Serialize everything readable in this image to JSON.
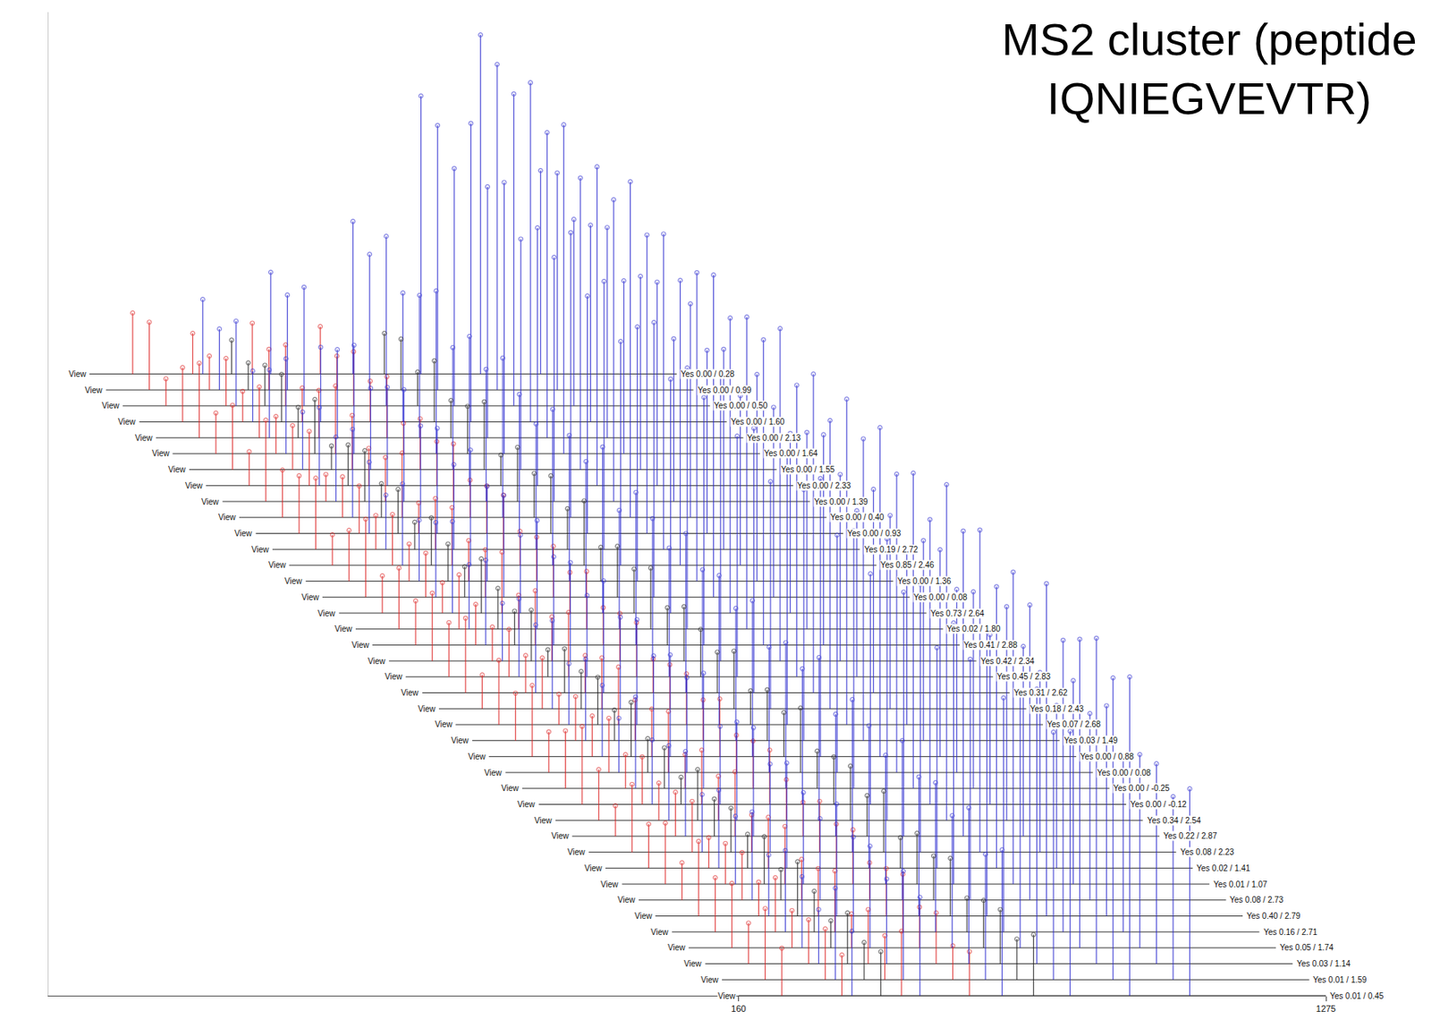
{
  "chart_data": {
    "type": "stacked_spectra",
    "title": "MS2 cluster (peptide IQNIEGVEVTR)",
    "x": [
      242.15,
      356.19,
      375.24,
      430.0,
      469.28,
      504.28,
      598.32,
      660.37,
      720.0,
      789.41,
      902.5,
      1016.54
    ],
    "colors": [
      "#dd2020",
      "#dd2020",
      "#2a2ad0",
      "#202020",
      "#dd2020",
      "#2a2ad0",
      "#dd2020",
      "#2a2ad0",
      "#202020",
      "#2a2ad0",
      "#2a2ad0",
      "#2a2ad0"
    ],
    "marker": "circle-open",
    "xlim": [
      -1150,
      1275
    ],
    "xticks": [
      160,
      1275
    ],
    "ylim": [
      0,
      290
    ],
    "tick_labels": "x",
    "grid": false,
    "rows": [
      {
        "link": "View",
        "label": "Yes 0.00 / 0.28",
        "values": [
          18,
          12,
          22,
          10,
          15,
          30,
          14,
          45,
          12,
          82,
          100,
          60
        ]
      },
      {
        "link": "View",
        "label": "Yes 0.00 / 0.99",
        "values": [
          20,
          10,
          18,
          8,
          12,
          28,
          10,
          40,
          15,
          78,
          96,
          64
        ]
      },
      {
        "link": "View",
        "label": "Yes 0.00 / 0.50",
        "values": [
          8,
          14,
          25,
          12,
          18,
          35,
          16,
          50,
          10,
          70,
          92,
          55
        ]
      },
      {
        "link": "View",
        "label": "Yes 0.00 / 1.60",
        "values": [
          16,
          9,
          15,
          14,
          10,
          22,
          12,
          38,
          18,
          88,
          100,
          58
        ]
      },
      {
        "link": "View",
        "label": "Yes 0.00 / 2.13",
        "values": [
          22,
          15,
          20,
          9,
          14,
          26,
          18,
          42,
          11,
          74,
          90,
          62
        ]
      },
      {
        "link": "View",
        "label": "Yes 0.00 / 1.64",
        "values": [
          12,
          11,
          28,
          16,
          20,
          32,
          9,
          48,
          14,
          80,
          97,
          51
        ]
      },
      {
        "link": "View",
        "label": "Yes 0.00 / 1.55",
        "values": [
          19,
          13,
          17,
          7,
          16,
          24,
          15,
          36,
          20,
          68,
          86,
          57
        ]
      },
      {
        "link": "View",
        "label": "Yes 0.00 / 2.33",
        "values": [
          10,
          16,
          23,
          12,
          11,
          29,
          13,
          44,
          9,
          76,
          94,
          60
        ]
      },
      {
        "link": "View",
        "label": "Yes 0.00 / 1.39",
        "values": [
          24,
          8,
          19,
          15,
          13,
          33,
          17,
          39,
          16,
          72,
          89,
          48
        ]
      },
      {
        "link": "View",
        "label": "Yes 0.00 / 0.40",
        "values": [
          14,
          12,
          26,
          10,
          19,
          27,
          11,
          47,
          13,
          84,
          99,
          63
        ]
      },
      {
        "link": "View",
        "label": "Yes 0.00 / 0.93",
        "values": [
          17,
          14,
          21,
          13,
          9,
          31,
          14,
          41,
          17,
          70,
          88,
          54
        ]
      },
      {
        "link": "View",
        "label": "Yes 0.19 / 2.72",
        "values": [
          21,
          10,
          16,
          8,
          15,
          25,
          16,
          37,
          12,
          79,
          93,
          59
        ]
      },
      {
        "link": "View",
        "label": "Yes 0.85 / 2.46",
        "values": [
          9,
          15,
          24,
          14,
          17,
          34,
          10,
          46,
          19,
          66,
          84,
          50
        ]
      },
      {
        "link": "View",
        "label": "Yes 0.00 / 1.36",
        "values": [
          15,
          11,
          18,
          11,
          12,
          28,
          13,
          43,
          10,
          75,
          91,
          61
        ]
      },
      {
        "link": "View",
        "label": "Yes 0.00 / 0.08",
        "values": [
          23,
          13,
          22,
          9,
          14,
          30,
          15,
          40,
          15,
          81,
          95,
          56
        ]
      },
      {
        "link": "View",
        "label": "Yes 0.73 / 2.64",
        "values": [
          11,
          9,
          27,
          16,
          18,
          23,
          12,
          49,
          13,
          69,
          87,
          53
        ]
      },
      {
        "link": "View",
        "label": "Yes 0.02 / 1.80",
        "values": [
          18,
          16,
          19,
          12,
          10,
          32,
          17,
          35,
          18,
          77,
          92,
          58
        ]
      },
      {
        "link": "View",
        "label": "Yes 0.41 / 2.88",
        "values": [
          13,
          12,
          25,
          10,
          16,
          26,
          11,
          45,
          11,
          73,
          90,
          62
        ]
      },
      {
        "link": "View",
        "label": "Yes 0.42 / 2.34",
        "values": [
          20,
          10,
          17,
          15,
          13,
          29,
          14,
          42,
          16,
          85,
          98,
          55
        ]
      },
      {
        "link": "View",
        "label": "Yes 0.45 / 2.83",
        "values": [
          16,
          14,
          23,
          8,
          19,
          24,
          16,
          38,
          14,
          71,
          86,
          49
        ]
      },
      {
        "link": "View",
        "label": "Yes 0.31 / 2.62",
        "values": [
          22,
          11,
          20,
          13,
          11,
          33,
          10,
          47,
          12,
          78,
          94,
          60
        ]
      },
      {
        "link": "View",
        "label": "Yes 0.18 / 2.43",
        "values": [
          10,
          15,
          26,
          11,
          15,
          27,
          13,
          41,
          17,
          67,
          85,
          57
        ]
      },
      {
        "link": "View",
        "label": "Yes 0.07 / 2.68",
        "values": [
          19,
          9,
          18,
          14,
          17,
          31,
          15,
          44,
          10,
          80,
          96,
          52
        ]
      },
      {
        "link": "View",
        "label": "Yes 0.03 / 1.49",
        "values": [
          14,
          13,
          24,
          9,
          12,
          25,
          12,
          39,
          15,
          74,
          89,
          59
        ]
      },
      {
        "link": "View",
        "label": "Yes 0.00 / 0.88",
        "values": [
          21,
          12,
          21,
          16,
          14,
          30,
          17,
          46,
          13,
          82,
          97,
          61
        ]
      },
      {
        "link": "View",
        "label": "Yes 0.00 / 0.08",
        "values": [
          12,
          16,
          16,
          10,
          18,
          28,
          11,
          37,
          19,
          70,
          88,
          54
        ]
      },
      {
        "link": "View",
        "label": "Yes 0.00 / -0.25",
        "values": [
          17,
          10,
          27,
          12,
          10,
          34,
          14,
          43,
          11,
          76,
          93,
          58
        ]
      },
      {
        "link": "View",
        "label": "Yes 0.00 / -0.12",
        "values": [
          23,
          14,
          19,
          8,
          16,
          23,
          16,
          40,
          14,
          68,
          84,
          50
        ]
      },
      {
        "link": "View",
        "label": "Yes 0.34 / 2.54",
        "values": [
          15,
          11,
          22,
          15,
          13,
          29,
          12,
          48,
          16,
          83,
          99,
          63
        ]
      },
      {
        "link": "View",
        "label": "Yes 0.22 / 2.87",
        "values": [
          9,
          13,
          25,
          11,
          19,
          32,
          10,
          36,
          12,
          72,
          90,
          56
        ]
      },
      {
        "link": "View",
        "label": "Yes 0.08 / 2.23",
        "values": [
          20,
          15,
          17,
          13,
          11,
          26,
          15,
          45,
          18,
          79,
          95,
          53
        ]
      },
      {
        "link": "View",
        "label": "Yes 0.02 / 1.41",
        "values": [
          13,
          9,
          23,
          10,
          15,
          31,
          13,
          42,
          9,
          65,
          83,
          48
        ]
      },
      {
        "link": "View",
        "label": "Yes 0.01 / 1.07",
        "values": [
          18,
          12,
          20,
          14,
          17,
          27,
          16,
          38,
          15,
          77,
          92,
          60
        ]
      },
      {
        "link": "View",
        "label": "Yes 0.08 / 2.73",
        "values": [
          11,
          14,
          26,
          9,
          12,
          24,
          11,
          47,
          13,
          71,
          87,
          55
        ]
      },
      {
        "link": "View",
        "label": "Yes 0.40 / 2.79",
        "values": [
          22,
          10,
          18,
          16,
          14,
          33,
          14,
          41,
          17,
          84,
          98,
          62
        ]
      },
      {
        "link": "View",
        "label": "Yes 0.16 / 2.71",
        "values": [
          16,
          16,
          24,
          12,
          18,
          28,
          17,
          44,
          10,
          69,
          86,
          51
        ]
      },
      {
        "link": "View",
        "label": "Yes 0.05 / 1.74",
        "values": [
          19,
          11,
          21,
          8,
          10,
          30,
          12,
          39,
          14,
          75,
          91,
          57
        ]
      },
      {
        "link": "View",
        "label": "Yes 0.03 / 1.14",
        "values": [
          12,
          13,
          16,
          15,
          16,
          25,
          15,
          46,
          16,
          81,
          96,
          59
        ]
      },
      {
        "link": "View",
        "label": "Yes 0.01 / 1.59",
        "values": [
          21,
          15,
          27,
          11,
          13,
          32,
          10,
          37,
          12,
          73,
          89,
          54
        ]
      },
      {
        "link": "View",
        "label": "Yes 0.01 / 0.45",
        "values": [
          14,
          12,
          19,
          13,
          19,
          29,
          13,
          43,
          18,
          78,
          94,
          61
        ]
      }
    ]
  }
}
